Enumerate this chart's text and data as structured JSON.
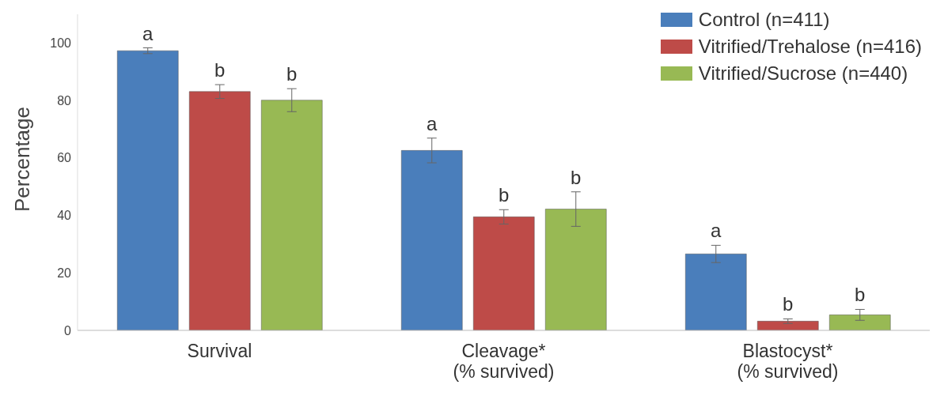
{
  "chart_data": {
    "type": "bar",
    "ylabel": "Percentage",
    "categories": [
      "Survival",
      "Cleavage*\n(% survived)",
      "Blastocyst*\n(% survived)"
    ],
    "series": [
      {
        "name": "Control (n=411)",
        "color": "#4a7ebb",
        "values": [
          97.3,
          62.6,
          26.6
        ],
        "errors": [
          1,
          4.3,
          3
        ]
      },
      {
        "name": "Vitrified/Trehalose (n=416)",
        "color": "#be4b48",
        "values": [
          83.1,
          39.5,
          3.2
        ],
        "errors": [
          2.4,
          2.5,
          0.8
        ]
      },
      {
        "name": "Vitrified/Sucrose (n=440)",
        "color": "#98b954",
        "values": [
          80.1,
          42.2,
          5.4
        ],
        "errors": [
          4,
          6,
          1.9
        ]
      }
    ],
    "annotations": [
      "a",
      "b",
      "b",
      "a",
      "b",
      "b",
      "a",
      "b",
      "b"
    ],
    "ylim": [
      0,
      110
    ],
    "yticks": [
      0,
      20,
      40,
      60,
      80,
      100
    ],
    "grid": false,
    "legend": "top right"
  }
}
